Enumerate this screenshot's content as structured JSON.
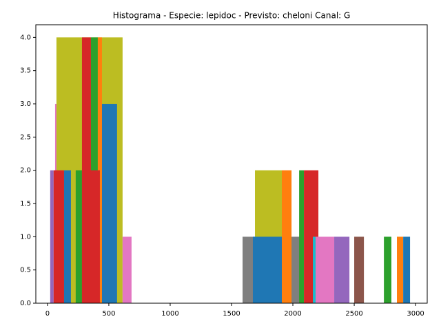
{
  "chart_data": {
    "type": "histogram",
    "title": "Histograma - Especie: lepidoc - Previsto: cheloni Canal: G",
    "xlim": [
      -95,
      3095
    ],
    "ylim": [
      0,
      4.19
    ],
    "xticks": [
      0,
      500,
      1000,
      1500,
      2000,
      2500,
      3000
    ],
    "yticks": [
      {
        "value": 0,
        "label": "0.0"
      },
      {
        "value": 0.5,
        "label": "0.5"
      },
      {
        "value": 1,
        "label": "1.0"
      },
      {
        "value": 1.5,
        "label": "1.5"
      },
      {
        "value": 2,
        "label": "2.0"
      },
      {
        "value": 2.5,
        "label": "2.5"
      },
      {
        "value": 3,
        "label": "3.0"
      },
      {
        "value": 3.5,
        "label": "3.5"
      },
      {
        "value": 4,
        "label": "4.0"
      }
    ],
    "series": [
      {
        "color": "#9467bd",
        "bins": [
          22,
          50
        ],
        "values": [
          2
        ]
      },
      {
        "color": "#e377c2",
        "bins": [
          62,
          78
        ],
        "values": [
          3
        ]
      },
      {
        "color": "#bcbd22",
        "bins": [
          73,
          612
        ],
        "values": [
          4
        ]
      },
      {
        "color": "#d62728",
        "bins": [
          50,
          135
        ],
        "values": [
          2
        ]
      },
      {
        "color": "#1f77b4",
        "bins": [
          135,
          191
        ],
        "values": [
          2
        ]
      },
      {
        "color": "#2ca02c",
        "bins": [
          230,
          281
        ],
        "values": [
          2
        ]
      },
      {
        "color": "#d62728",
        "bins": [
          281,
          354
        ],
        "values": [
          4
        ]
      },
      {
        "color": "#2ca02c",
        "bins": [
          354,
          410
        ],
        "values": [
          4
        ]
      },
      {
        "color": "#ff7f0e",
        "bins": [
          410,
          444
        ],
        "values": [
          4
        ]
      },
      {
        "color": "#d62728",
        "bins": [
          281,
          427
        ],
        "values": [
          2
        ]
      },
      {
        "color": "#1f77b4",
        "bins": [
          444,
          567
        ],
        "values": [
          3
        ]
      },
      {
        "color": "#e377c2",
        "bins": [
          612,
          685
        ],
        "values": [
          1
        ]
      },
      {
        "color": "#7f7f7f",
        "bins": [
          1590,
          2056
        ],
        "values": [
          1
        ]
      },
      {
        "color": "#bcbd22",
        "bins": [
          1691,
          1910
        ],
        "values": [
          2
        ]
      },
      {
        "color": "#1f77b4",
        "bins": [
          1674,
          1910
        ],
        "values": [
          1
        ]
      },
      {
        "color": "#ff7f0e",
        "bins": [
          1910,
          1989
        ],
        "values": [
          2
        ]
      },
      {
        "color": "#2ca02c",
        "bins": [
          2051,
          2090
        ],
        "values": [
          2
        ]
      },
      {
        "color": "#d62728",
        "bins": [
          2090,
          2208
        ],
        "values": [
          2
        ]
      },
      {
        "color": "#17becf",
        "bins": [
          2163,
          2185
        ],
        "values": [
          1
        ]
      },
      {
        "color": "#e377c2",
        "bins": [
          2185,
          2337
        ],
        "values": [
          1
        ]
      },
      {
        "color": "#9467bd",
        "bins": [
          2337,
          2461
        ],
        "values": [
          1
        ]
      },
      {
        "color": "#8c564b",
        "bins": [
          2500,
          2579
        ],
        "values": [
          1
        ]
      },
      {
        "color": "#2ca02c",
        "bins": [
          2742,
          2803
        ],
        "values": [
          1
        ]
      },
      {
        "color": "#ff7f0e",
        "bins": [
          2848,
          2899
        ],
        "values": [
          1
        ]
      },
      {
        "color": "#1f77b4",
        "bins": [
          2899,
          2955
        ],
        "values": [
          1
        ]
      }
    ]
  }
}
